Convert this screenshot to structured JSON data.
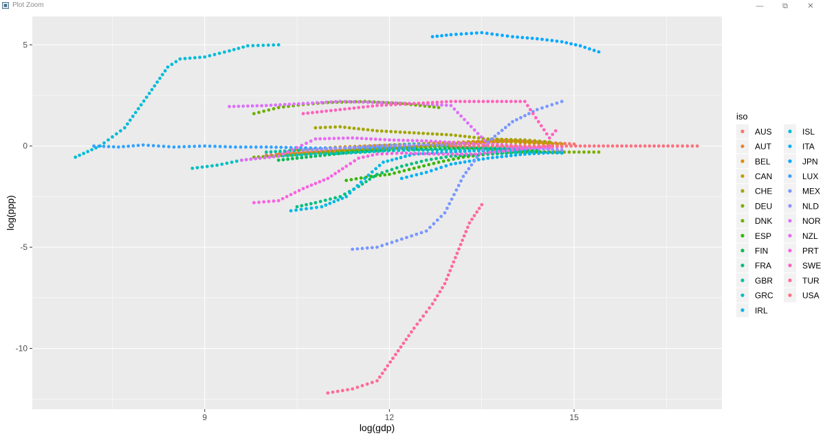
{
  "window": {
    "title": "Plot Zoom",
    "minimize_glyph": "—",
    "maximize_glyph": "⧉",
    "close_glyph": "✕"
  },
  "chart_data": {
    "type": "scatter",
    "xlabel": "log(gdp)",
    "ylabel": "log(ppp)",
    "xlim": [
      6.2,
      17.4
    ],
    "ylim": [
      -13.0,
      6.4
    ],
    "x_ticks": [
      9,
      12,
      15
    ],
    "x_tick_labels": [
      "9",
      "12",
      "15"
    ],
    "y_ticks": [
      -10,
      -5,
      0,
      5
    ],
    "y_tick_labels": [
      "-10",
      "-5",
      "0",
      "5"
    ],
    "grid": true,
    "legend": {
      "title": "iso",
      "placement": "right",
      "columns": 2
    },
    "series": [
      {
        "name": "AUS",
        "color": "#F8766D",
        "x": [
          10.0,
          10.8,
          11.6,
          12.4,
          13.2,
          13.8,
          14.4,
          15.0
        ],
        "y": [
          -0.45,
          -0.3,
          -0.15,
          0.0,
          0.15,
          0.3,
          0.2,
          0.1
        ]
      },
      {
        "name": "AUT",
        "color": "#EA8331",
        "x": [
          10.2,
          11.0,
          11.8,
          12.6,
          13.4,
          14.0,
          14.6
        ],
        "y": [
          -0.4,
          -0.25,
          -0.15,
          0.0,
          0.15,
          0.25,
          0.15
        ]
      },
      {
        "name": "BEL",
        "color": "#D89000",
        "x": [
          10.4,
          11.2,
          12.0,
          12.8,
          13.6,
          14.2,
          14.8
        ],
        "y": [
          -0.2,
          -0.05,
          0.05,
          0.15,
          0.25,
          0.2,
          0.05
        ]
      },
      {
        "name": "CAN",
        "color": "#C09B00",
        "x": [
          11.2,
          11.8,
          12.4,
          13.0,
          13.6,
          14.2,
          14.8
        ],
        "y": [
          -0.2,
          -0.1,
          0.0,
          0.1,
          0.25,
          0.15,
          0.1
        ]
      },
      {
        "name": "CHE",
        "color": "#A3A500",
        "x": [
          10.8,
          11.2,
          11.8,
          12.4,
          13.0,
          13.6,
          14.2,
          14.6
        ],
        "y": [
          0.9,
          0.95,
          0.75,
          0.65,
          0.55,
          0.35,
          0.3,
          0.2
        ]
      },
      {
        "name": "DEU",
        "color": "#7CAE00",
        "x": [
          9.8,
          10.4,
          11.0,
          11.6,
          12.2,
          12.8,
          13.4,
          14.0,
          14.6,
          15.4
        ],
        "y": [
          -0.55,
          -0.45,
          -0.3,
          -0.2,
          -0.1,
          0.0,
          -0.1,
          -0.25,
          -0.3,
          -0.3
        ]
      },
      {
        "name": "DNK",
        "color": "#6EB000",
        "x": [
          9.8,
          10.2,
          10.6,
          11.0,
          11.6,
          12.2,
          12.8
        ],
        "y": [
          1.6,
          1.9,
          2.05,
          2.15,
          2.2,
          2.1,
          1.9
        ]
      },
      {
        "name": "ESP",
        "color": "#39B600",
        "x": [
          11.3,
          11.7,
          12.0,
          12.4,
          12.8,
          13.2,
          13.6,
          14.0,
          14.6
        ],
        "y": [
          -1.7,
          -1.5,
          -1.4,
          -1.1,
          -0.8,
          -0.55,
          -0.4,
          -0.3,
          -0.3
        ]
      },
      {
        "name": "FIN",
        "color": "#00BB4E",
        "x": [
          10.2,
          10.8,
          11.4,
          12.0,
          12.6,
          13.2,
          13.8,
          14.4
        ],
        "y": [
          -0.7,
          -0.5,
          -0.3,
          -0.2,
          -0.15,
          -0.1,
          -0.1,
          -0.2
        ]
      },
      {
        "name": "FRA",
        "color": "#00BF7D",
        "x": [
          10.5,
          10.8,
          11.2,
          11.5,
          11.8,
          12.2,
          12.6,
          13.0,
          13.6,
          14.2
        ],
        "y": [
          -3.0,
          -2.8,
          -2.5,
          -2.0,
          -1.4,
          -1.0,
          -0.7,
          -0.5,
          -0.4,
          -0.3
        ]
      },
      {
        "name": "GBR",
        "color": "#00C1A3",
        "x": [
          10.0,
          10.6,
          11.2,
          11.8,
          12.4,
          13.0,
          13.6,
          14.2
        ],
        "y": [
          -0.3,
          -0.2,
          -0.1,
          0.0,
          0.1,
          0.0,
          -0.1,
          -0.2
        ]
      },
      {
        "name": "GRC",
        "color": "#00BFC4",
        "x": [
          8.8,
          9.2,
          9.6,
          10.2,
          10.8,
          11.3,
          11.6,
          11.9,
          12.4,
          13.0,
          13.6,
          14.2,
          14.8
        ],
        "y": [
          -1.1,
          -0.95,
          -0.7,
          -0.5,
          -0.4,
          -0.35,
          -0.3,
          -0.25,
          -0.2,
          -0.2,
          -0.25,
          -0.3,
          -0.35
        ]
      },
      {
        "name": "IRL",
        "color": "#00B8E5",
        "x": [
          10.4,
          10.9,
          11.3,
          11.6,
          11.9,
          12.4,
          13.0,
          13.6,
          14.2
        ],
        "y": [
          -3.2,
          -3.0,
          -2.5,
          -1.6,
          -0.8,
          -0.4,
          -0.3,
          -0.2,
          -0.2
        ]
      },
      {
        "name": "ISL",
        "color": "#00BCD8",
        "x": [
          6.9,
          7.3,
          7.7,
          8.1,
          8.4,
          8.6,
          9.0,
          9.4,
          9.7,
          10.2
        ],
        "y": [
          -0.55,
          0.0,
          0.9,
          2.6,
          3.9,
          4.3,
          4.4,
          4.7,
          4.95,
          5.0
        ]
      },
      {
        "name": "ITA",
        "color": "#00B0F6",
        "x": [
          12.2,
          12.6,
          13.0,
          13.6,
          14.2,
          14.8
        ],
        "y": [
          -1.6,
          -1.3,
          -0.9,
          -0.6,
          -0.4,
          -0.3
        ]
      },
      {
        "name": "JPN",
        "color": "#00A9FF",
        "x": [
          12.7,
          13.0,
          13.5,
          14.0,
          14.4,
          14.8,
          15.1,
          15.4
        ],
        "y": [
          5.4,
          5.5,
          5.6,
          5.4,
          5.3,
          5.15,
          4.95,
          4.65
        ]
      },
      {
        "name": "LUX",
        "color": "#35A2FF",
        "x": [
          7.2,
          7.6,
          8.0,
          8.5,
          9.0,
          9.5,
          10.0,
          10.8,
          11.6,
          12.4
        ],
        "y": [
          0.0,
          -0.05,
          0.05,
          -0.05,
          0.0,
          -0.05,
          -0.05,
          -0.1,
          -0.1,
          -0.1
        ]
      },
      {
        "name": "MEX",
        "color": "#7997FF",
        "x": [
          11.4,
          11.8,
          12.2,
          12.6,
          12.9,
          13.2,
          13.6,
          14.0,
          14.4,
          14.8
        ],
        "y": [
          -5.1,
          -5.0,
          -4.6,
          -4.2,
          -3.3,
          -1.5,
          0.2,
          1.2,
          1.8,
          2.2
        ]
      },
      {
        "name": "NLD",
        "color": "#9590FF",
        "x": [
          10.6,
          11.2,
          11.8,
          12.4,
          13.0,
          13.6,
          14.2,
          14.8
        ],
        "y": [
          -0.2,
          -0.1,
          0.0,
          0.05,
          0.05,
          0.0,
          -0.1,
          -0.2
        ]
      },
      {
        "name": "NOR",
        "color": "#DC71FA",
        "x": [
          9.4,
          10.0,
          10.6,
          11.2,
          11.8,
          12.4,
          13.0,
          13.6,
          14.2,
          14.8
        ],
        "y": [
          1.95,
          2.0,
          2.1,
          2.2,
          2.15,
          2.1,
          2.0,
          0.1,
          0.0,
          -0.05
        ]
      },
      {
        "name": "NZL",
        "color": "#E76BF3",
        "x": [
          9.6,
          10.2,
          10.8,
          11.4,
          12.0,
          12.6,
          13.2,
          14.0,
          14.6
        ],
        "y": [
          -0.7,
          -0.5,
          0.35,
          0.4,
          0.3,
          0.25,
          0.15,
          -0.05,
          -0.1
        ]
      },
      {
        "name": "PRT",
        "color": "#F763E0",
        "x": [
          9.8,
          10.2,
          10.6,
          11.0,
          11.3,
          11.5,
          11.8,
          12.2,
          12.8,
          13.4,
          14.0,
          14.6
        ],
        "y": [
          -2.8,
          -2.7,
          -2.1,
          -1.6,
          -1.0,
          -0.6,
          -0.4,
          -0.35,
          -0.4,
          -0.4,
          -0.2,
          0.0
        ]
      },
      {
        "name": "SWE",
        "color": "#FF62BC",
        "x": [
          10.6,
          11.2,
          11.8,
          12.4,
          13.0,
          13.6,
          14.2,
          14.6,
          14.7
        ],
        "y": [
          1.6,
          1.8,
          2.0,
          2.1,
          2.2,
          2.2,
          2.2,
          0.4,
          0.75
        ]
      },
      {
        "name": "TUR",
        "color": "#FF6A98",
        "x": [
          11.0,
          11.4,
          11.8,
          12.1,
          12.4,
          12.7,
          12.9,
          13.1,
          13.3,
          13.5
        ],
        "y": [
          -12.2,
          -12.0,
          -11.6,
          -10.3,
          -9.0,
          -7.8,
          -6.8,
          -5.3,
          -3.8,
          -2.9
        ]
      },
      {
        "name": "USA",
        "color": "#FC717F",
        "x": [
          13.0,
          13.6,
          14.2,
          14.8,
          15.4,
          16.0,
          16.6,
          17.0
        ],
        "y": [
          0.0,
          0.0,
          0.0,
          0.0,
          0.0,
          0.0,
          0.0,
          0.0
        ]
      }
    ]
  }
}
